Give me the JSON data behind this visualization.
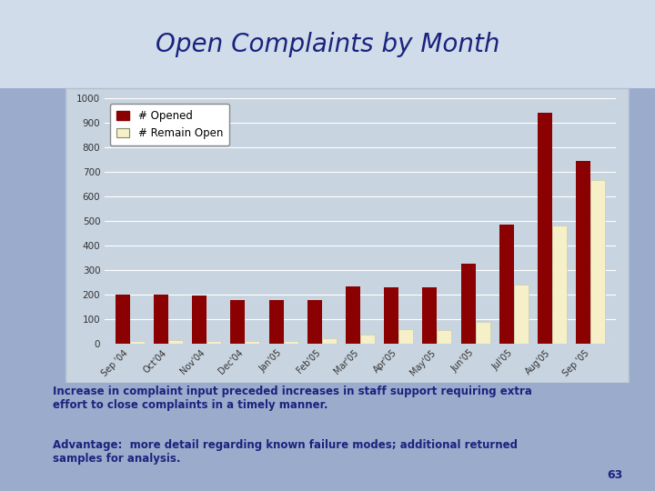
{
  "title": "Open Complaints by Month",
  "categories": [
    "Sep '04",
    "Oct'04",
    "Nov'04",
    "Dec'04",
    "Jan'05",
    "Feb'05",
    "Mar'05",
    "Apr'05",
    "May'05",
    "Jun'05",
    "Jul'05",
    "Aug'05",
    "Sep '05"
  ],
  "opened": [
    200,
    200,
    195,
    178,
    178,
    178,
    232,
    228,
    228,
    325,
    485,
    940,
    745
  ],
  "remain_open": [
    10,
    15,
    12,
    12,
    10,
    22,
    38,
    60,
    55,
    88,
    240,
    480,
    665
  ],
  "bar_color_opened": "#8B0000",
  "bar_color_remain": "#F5F0C8",
  "ylim": [
    0,
    1000
  ],
  "yticks": [
    0,
    100,
    200,
    300,
    400,
    500,
    600,
    700,
    800,
    900,
    1000
  ],
  "legend_opened": "# Opened",
  "legend_remain": "# Remain Open",
  "text1": "Increase in complaint input preceded increases in staff support requiring extra\neffort to close complaints in a timely manner.",
  "text2": "Advantage:  more detail regarding known failure modes; additional returned\nsamples for analysis.",
  "page_num": "63",
  "bg_top": "#c8d4e4",
  "bg_bottom": "#8090b0",
  "plot_bg": "#c5d0de",
  "chart_border": "#a0b0c8",
  "text_color": "#1a237e",
  "title_color": "#1a237e"
}
